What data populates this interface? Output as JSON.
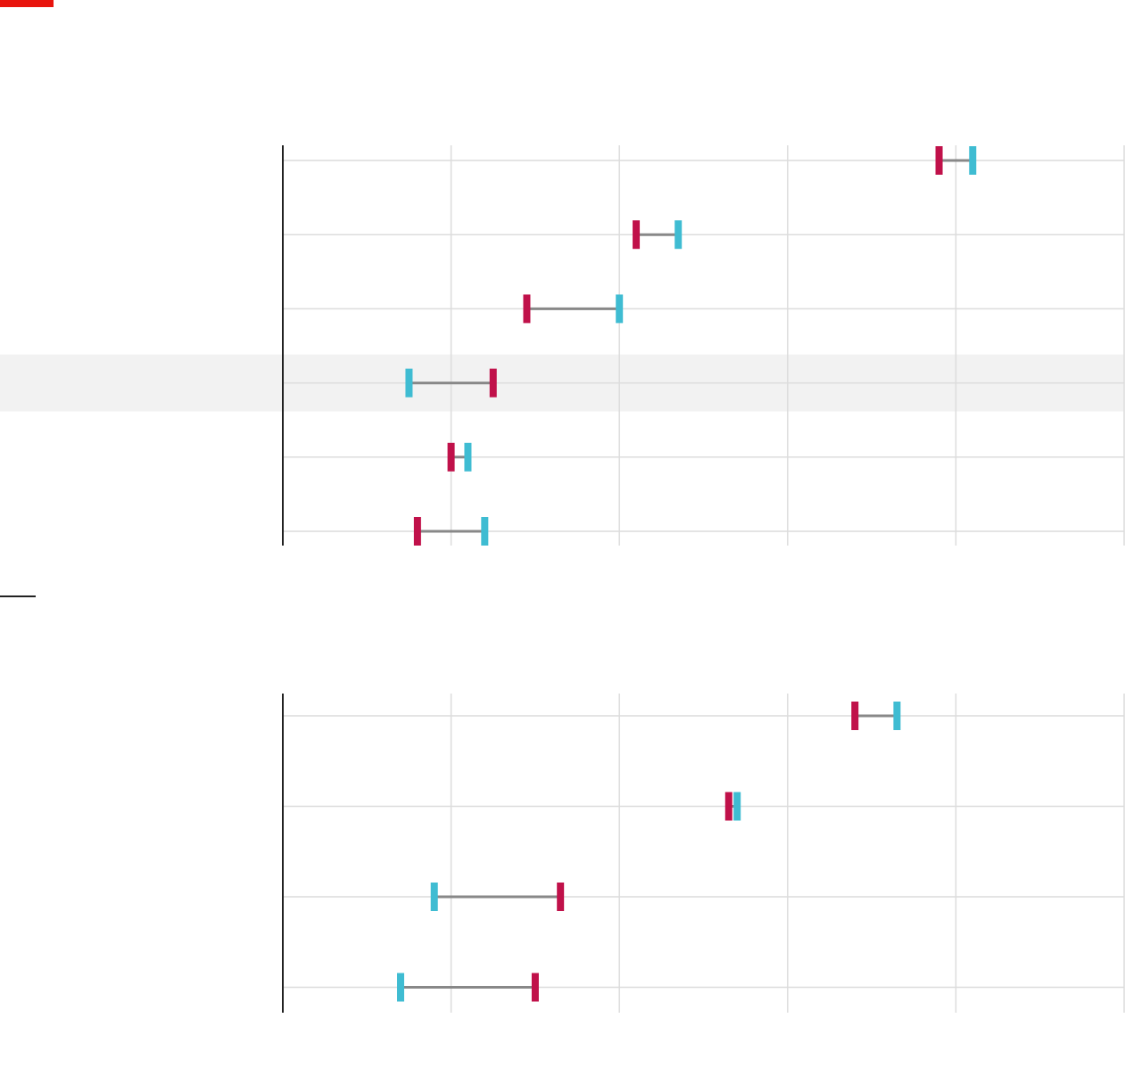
{
  "colors": {
    "accent": "#e8140d",
    "start_marker": "#c0114a",
    "end_marker": "#3fbcd2",
    "connector": "#888888",
    "grid": "#dcdcdc",
    "axis": "#222222",
    "highlight_band": "#f2f2f2"
  },
  "chart_data": [
    {
      "type": "dumbbell",
      "xlim": [
        0,
        5
      ],
      "grid": true,
      "highlighted_row": 3,
      "rows": [
        {
          "start": 3.9,
          "end": 4.1
        },
        {
          "start": 2.1,
          "end": 2.35
        },
        {
          "start": 1.45,
          "end": 2.0
        },
        {
          "start": 1.25,
          "end": 0.75
        },
        {
          "start": 1.0,
          "end": 1.1
        },
        {
          "start": 0.8,
          "end": 1.2
        }
      ]
    },
    {
      "type": "dumbbell",
      "xlim": [
        0,
        5
      ],
      "grid": true,
      "rows": [
        {
          "start": 3.4,
          "end": 3.65
        },
        {
          "start": 2.65,
          "end": 2.7
        },
        {
          "start": 1.65,
          "end": 0.9
        },
        {
          "start": 1.5,
          "end": 0.7
        }
      ]
    }
  ]
}
